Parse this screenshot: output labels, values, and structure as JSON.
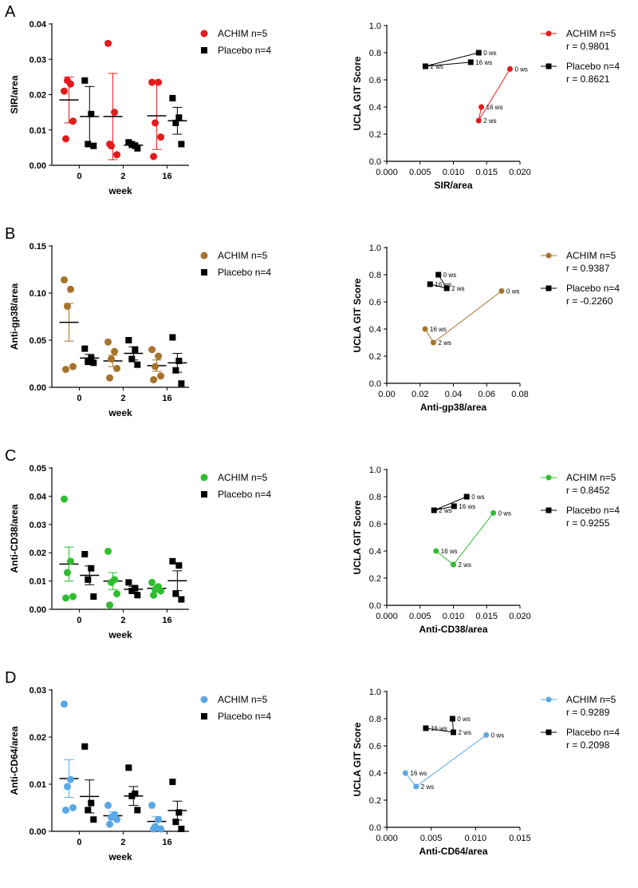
{
  "chart_data": [
    {
      "panel": "A",
      "type": "scatter",
      "ylabel": "SIR/area",
      "xlabel": "week",
      "categories": [
        "0",
        "2",
        "16"
      ],
      "ylim": [
        0,
        0.04
      ],
      "yticks": [
        "0.00",
        "0.01",
        "0.02",
        "0.03",
        "0.04"
      ],
      "series": [
        {
          "name": "ACHIM n=5",
          "color": "#e41a1c",
          "marker": "circle",
          "points": [
            [
              0.021,
              0.023,
              0.024,
              0.0125,
              0.0075
            ],
            [
              0.0345,
              0.015,
              0.0055,
              0.003,
              0.006
            ],
            [
              0.0235,
              0.0235,
              0.012,
              0.008,
              0.0025
            ]
          ],
          "mean": [
            0.0185,
            0.0138,
            0.014
          ],
          "err": [
            0.0065,
            0.0122,
            0.0095
          ]
        },
        {
          "name": "Placebo n=4",
          "color": "#000000",
          "marker": "square",
          "points": [
            [
              0.024,
              0.0145,
              0.006,
              0.0055
            ],
            [
              0.0065,
              0.0055,
              0.006,
              0.0048
            ],
            [
              0.019,
              0.0135,
              0.012,
              0.006
            ]
          ],
          "mean": [
            0.0138,
            0.0057,
            0.0126
          ],
          "err": [
            0.0085,
            0.0007,
            0.0038
          ]
        }
      ],
      "correlation": {
        "xlabel": "SIR/area",
        "ylabel": "UCLA GIT Score",
        "xlim": [
          0,
          0.02
        ],
        "ylim": [
          0,
          1.0
        ],
        "xticks": [
          "0.000",
          "0.005",
          "0.010",
          "0.015",
          "0.020"
        ],
        "yticks": [
          "0.0",
          "0.2",
          "0.4",
          "0.6",
          "0.8",
          "1.0"
        ],
        "series": [
          {
            "name": "ACHIM n=5",
            "r": "r = 0.9801",
            "color": "#e41a1c",
            "marker": "circle",
            "points": [
              {
                "x": 0.0185,
                "y": 0.68,
                "label": "0 ws"
              },
              {
                "x": 0.0138,
                "y": 0.3,
                "label": "2 ws"
              },
              {
                "x": 0.0142,
                "y": 0.4,
                "label": "16 ws"
              }
            ]
          },
          {
            "name": "Placebo n=4",
            "r": "r = 0.8621",
            "color": "#000000",
            "marker": "square",
            "points": [
              {
                "x": 0.0138,
                "y": 0.8,
                "label": "0 ws"
              },
              {
                "x": 0.0058,
                "y": 0.7,
                "label": "2 ws"
              },
              {
                "x": 0.0126,
                "y": 0.73,
                "label": "16 ws"
              }
            ]
          }
        ]
      }
    },
    {
      "panel": "B",
      "type": "scatter",
      "ylabel": "Anti-gp38/area",
      "xlabel": "week",
      "categories": [
        "0",
        "2",
        "16"
      ],
      "ylim": [
        0,
        0.15
      ],
      "yticks": [
        "0.00",
        "0.05",
        "0.10",
        "0.15"
      ],
      "series": [
        {
          "name": "ACHIM n=5",
          "color": "#a5732b",
          "marker": "circle",
          "points": [
            [
              0.114,
              0.104,
              0.086,
              0.022,
              0.019
            ],
            [
              0.048,
              0.038,
              0.03,
              0.02,
              0.01
            ],
            [
              0.04,
              0.033,
              0.022,
              0.012,
              0.008
            ]
          ],
          "mean": [
            0.069,
            0.028,
            0.023
          ],
          "err": [
            0.02,
            0.006,
            0.006
          ]
        },
        {
          "name": "Placebo n=4",
          "color": "#000000",
          "marker": "square",
          "points": [
            [
              0.041,
              0.031,
              0.027,
              0.026
            ],
            [
              0.05,
              0.04,
              0.03,
              0.024
            ],
            [
              0.053,
              0.028,
              0.018,
              0.004
            ]
          ],
          "mean": [
            0.031,
            0.036,
            0.026
          ],
          "err": [
            0.004,
            0.007,
            0.01
          ]
        }
      ],
      "correlation": {
        "xlabel": "Anti-gp38/area",
        "ylabel": "UCLA GIT Score",
        "xlim": [
          0,
          0.08
        ],
        "ylim": [
          0,
          1.0
        ],
        "xticks": [
          "0.00",
          "0.02",
          "0.04",
          "0.06",
          "0.08"
        ],
        "yticks": [
          "0.0",
          "0.2",
          "0.4",
          "0.6",
          "0.8",
          "1.0"
        ],
        "series": [
          {
            "name": "ACHIM n=5",
            "r": "r = 0.9387",
            "color": "#a5732b",
            "marker": "circle",
            "points": [
              {
                "x": 0.069,
                "y": 0.68,
                "label": "0 ws"
              },
              {
                "x": 0.028,
                "y": 0.3,
                "label": "2 ws"
              },
              {
                "x": 0.023,
                "y": 0.4,
                "label": "16 ws"
              }
            ]
          },
          {
            "name": "Placebo n=4",
            "r": "r = -0.2260",
            "color": "#000000",
            "marker": "square",
            "points": [
              {
                "x": 0.031,
                "y": 0.8,
                "label": "0 ws"
              },
              {
                "x": 0.036,
                "y": 0.7,
                "label": "2 ws"
              },
              {
                "x": 0.026,
                "y": 0.73,
                "label": "16 ws"
              }
            ]
          }
        ]
      }
    },
    {
      "panel": "C",
      "type": "scatter",
      "ylabel": "Anti-CD38/area",
      "xlabel": "week",
      "categories": [
        "0",
        "2",
        "16"
      ],
      "ylim": [
        0,
        0.05
      ],
      "yticks": [
        "0.00",
        "0.01",
        "0.02",
        "0.03",
        "0.04",
        "0.05"
      ],
      "series": [
        {
          "name": "ACHIM n=5",
          "color": "#2ebd2e",
          "marker": "circle",
          "points": [
            [
              0.039,
              0.017,
              0.013,
              0.0045,
              0.004
            ],
            [
              0.0205,
              0.0105,
              0.0095,
              0.0055,
              0.0015
            ],
            [
              0.0095,
              0.008,
              0.007,
              0.0065,
              0.005
            ]
          ],
          "mean": [
            0.016,
            0.01,
            0.0074
          ],
          "err": [
            0.006,
            0.003,
            0.001
          ]
        },
        {
          "name": "Placebo n=4",
          "color": "#000000",
          "marker": "square",
          "points": [
            [
              0.0195,
              0.0145,
              0.0105,
              0.0045
            ],
            [
              0.0095,
              0.0075,
              0.0065,
              0.005
            ],
            [
              0.017,
              0.0155,
              0.0055,
              0.0035
            ]
          ],
          "mean": [
            0.012,
            0.0071,
            0.0101
          ],
          "err": [
            0.0033,
            0.001,
            0.0035
          ]
        }
      ],
      "correlation": {
        "xlabel": "Anti-CD38/area",
        "ylabel": "UCLA GIT Score",
        "xlim": [
          0,
          0.02
        ],
        "ylim": [
          0,
          1.0
        ],
        "xticks": [
          "0.000",
          "0.005",
          "0.010",
          "0.015",
          "0.020"
        ],
        "yticks": [
          "0.0",
          "0.2",
          "0.4",
          "0.6",
          "0.8",
          "1.0"
        ],
        "series": [
          {
            "name": "ACHIM n=5",
            "r": "r = 0.8452",
            "color": "#2ebd2e",
            "marker": "circle",
            "points": [
              {
                "x": 0.016,
                "y": 0.68,
                "label": "0 ws"
              },
              {
                "x": 0.01,
                "y": 0.3,
                "label": "2 ws"
              },
              {
                "x": 0.0074,
                "y": 0.4,
                "label": "16 ws"
              }
            ]
          },
          {
            "name": "Placebo n=4",
            "r": "r = 0.9255",
            "color": "#000000",
            "marker": "square",
            "points": [
              {
                "x": 0.012,
                "y": 0.8,
                "label": "0 ws"
              },
              {
                "x": 0.0071,
                "y": 0.7,
                "label": "2 ws"
              },
              {
                "x": 0.0101,
                "y": 0.73,
                "label": "16 ws"
              }
            ]
          }
        ]
      }
    },
    {
      "panel": "D",
      "type": "scatter",
      "ylabel": "Anti-CD64/area",
      "xlabel": "week",
      "categories": [
        "0",
        "2",
        "16"
      ],
      "ylim": [
        0,
        0.03
      ],
      "yticks": [
        "0.00",
        "0.01",
        "0.02",
        "0.03"
      ],
      "series": [
        {
          "name": "ACHIM n=5",
          "color": "#5aa7e6",
          "marker": "circle",
          "points": [
            [
              0.027,
              0.011,
              0.0095,
              0.005,
              0.0045
            ],
            [
              0.0055,
              0.0035,
              0.003,
              0.0025,
              0.0015
            ],
            [
              0.0055,
              0.0025,
              0.001,
              0.0005,
              0.0005
            ]
          ],
          "mean": [
            0.0112,
            0.0033,
            0.0021
          ],
          "err": [
            0.004,
            0.0008,
            0.001
          ]
        },
        {
          "name": "Placebo n=4",
          "color": "#000000",
          "marker": "square",
          "points": [
            [
              0.018,
              0.006,
              0.0045,
              0.0025
            ],
            [
              0.0135,
              0.008,
              0.0075,
              0.0045
            ],
            [
              0.0105,
              0.004,
              0.002,
              0.0005
            ]
          ],
          "mean": [
            0.0074,
            0.0075,
            0.0044
          ],
          "err": [
            0.0035,
            0.002,
            0.002
          ]
        }
      ],
      "correlation": {
        "xlabel": "Anti-CD64/area",
        "ylabel": "UCLA GIT Score",
        "xlim": [
          0,
          0.015
        ],
        "ylim": [
          0,
          1.0
        ],
        "xticks": [
          "0.000",
          "0.005",
          "0.010",
          "0.015"
        ],
        "yticks": [
          "0.0",
          "0.2",
          "0.4",
          "0.6",
          "0.8",
          "1.0"
        ],
        "series": [
          {
            "name": "ACHIM n=5",
            "r": "r = 0.9289",
            "color": "#5aa7e6",
            "marker": "circle",
            "points": [
              {
                "x": 0.0112,
                "y": 0.68,
                "label": "0 ws"
              },
              {
                "x": 0.0033,
                "y": 0.3,
                "label": "2 ws"
              },
              {
                "x": 0.0021,
                "y": 0.4,
                "label": "16 ws"
              }
            ]
          },
          {
            "name": "Placebo n=4",
            "r": "r = 0.2098",
            "color": "#000000",
            "marker": "square",
            "points": [
              {
                "x": 0.0074,
                "y": 0.8,
                "label": "0 ws"
              },
              {
                "x": 0.0075,
                "y": 0.7,
                "label": "2 ws"
              },
              {
                "x": 0.0044,
                "y": 0.73,
                "label": "16 ws"
              }
            ]
          }
        ]
      }
    }
  ]
}
